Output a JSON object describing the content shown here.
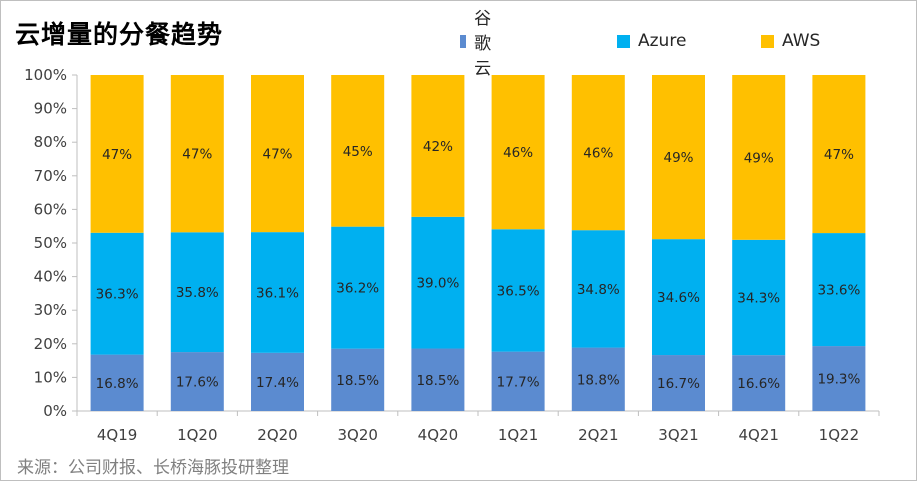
{
  "title": "云增量的分餐趋势",
  "source": "来源：公司财报、长桥海豚投研整理",
  "chart_data": {
    "type": "bar",
    "stacked": true,
    "percent_stacked": true,
    "categories": [
      "4Q19",
      "1Q20",
      "2Q20",
      "3Q20",
      "4Q20",
      "1Q21",
      "2Q21",
      "3Q21",
      "4Q21",
      "1Q22"
    ],
    "series": [
      {
        "name": "谷歌云",
        "color": "#5b8bd0",
        "values": [
          16.8,
          17.6,
          17.4,
          18.5,
          18.5,
          17.7,
          18.8,
          16.7,
          16.6,
          19.3
        ],
        "labels": [
          "16.8%",
          "17.6%",
          "17.4%",
          "18.5%",
          "18.5%",
          "17.7%",
          "18.8%",
          "16.7%",
          "16.6%",
          "19.3%"
        ]
      },
      {
        "name": "Azure",
        "color": "#00b0f0",
        "values": [
          36.3,
          35.8,
          36.1,
          36.2,
          39.0,
          36.5,
          34.8,
          34.6,
          34.3,
          33.6
        ],
        "labels": [
          "36.3%",
          "35.8%",
          "36.1%",
          "36.2%",
          "39.0%",
          "36.5%",
          "34.8%",
          "34.6%",
          "34.3%",
          "33.6%"
        ]
      },
      {
        "name": "AWS",
        "color": "#ffc000",
        "values": [
          47,
          47,
          47,
          45,
          42,
          46,
          46,
          49,
          49,
          47
        ],
        "labels": [
          "47%",
          "47%",
          "47%",
          "45%",
          "42%",
          "46%",
          "46%",
          "49%",
          "49%",
          "47%"
        ]
      }
    ],
    "ylim": [
      0,
      100
    ],
    "yticks": [
      "0%",
      "10%",
      "20%",
      "30%",
      "40%",
      "50%",
      "60%",
      "70%",
      "80%",
      "90%",
      "100%"
    ],
    "legend_position": "top",
    "grid": false
  }
}
